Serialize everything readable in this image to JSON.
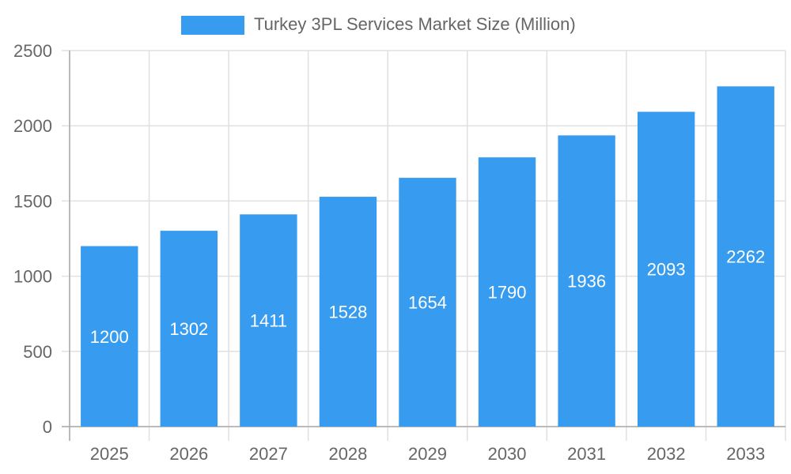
{
  "chart_data": {
    "type": "bar",
    "title": "",
    "legend": {
      "position": "top",
      "entries": [
        "Turkey 3PL Services Market Size (Million)"
      ]
    },
    "categories": [
      "2025",
      "2026",
      "2027",
      "2028",
      "2029",
      "2030",
      "2031",
      "2032",
      "2033"
    ],
    "series": [
      {
        "name": "Turkey 3PL Services Market Size (Million)",
        "values": [
          1200,
          1302,
          1411,
          1528,
          1654,
          1790,
          1936,
          2093,
          2262
        ],
        "color": "#379cef"
      }
    ],
    "xlabel": "",
    "ylabel": "",
    "ylim": [
      0,
      2500
    ],
    "yticks": [
      0,
      500,
      1000,
      1500,
      2000,
      2500
    ],
    "grid": true,
    "data_labels": true
  }
}
